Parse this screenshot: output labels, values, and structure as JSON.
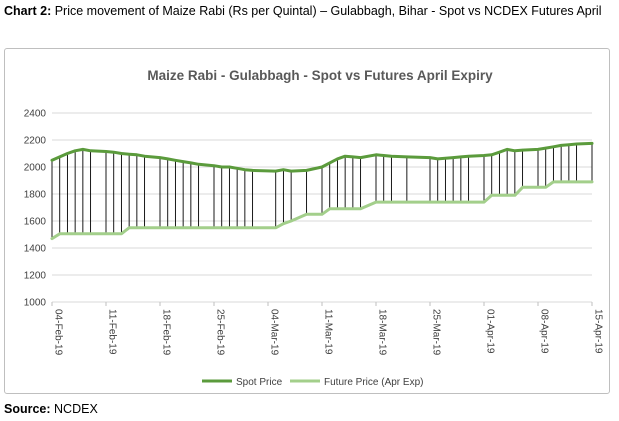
{
  "caption": {
    "label": "Chart 2:",
    "text": "Price movement of Maize Rabi (Rs per Quintal) – Gulabbagh, Bihar - Spot vs NCDEX Futures April"
  },
  "source": {
    "label": "Source:",
    "text": "NCDEX"
  },
  "colors": {
    "spot": "#5b9b3c",
    "future": "#a3cf8b",
    "connector": "#000000",
    "grid": "#d9d9d9"
  },
  "chart_data": {
    "type": "line",
    "title": "Maize Rabi - Gulabbagh - Spot vs Futures April Expiry",
    "xlabel": "",
    "ylabel": "",
    "ylim": [
      1000,
      2400
    ],
    "yticks": [
      1000,
      1200,
      1400,
      1600,
      1800,
      2000,
      2200,
      2400
    ],
    "xticks": [
      "04-Feb-19",
      "11-Feb-19",
      "18-Feb-19",
      "25-Feb-19",
      "04-Mar-19",
      "11-Mar-19",
      "18-Mar-19",
      "25-Mar-19",
      "01-Apr-19",
      "08-Apr-19",
      "15-Apr-19"
    ],
    "grid": "horizontal",
    "legend": "bottom",
    "x": [
      "04-Feb-19",
      "05-Feb-19",
      "06-Feb-19",
      "07-Feb-19",
      "08-Feb-19",
      "09-Feb-19",
      "11-Feb-19",
      "12-Feb-19",
      "13-Feb-19",
      "14-Feb-19",
      "15-Feb-19",
      "16-Feb-19",
      "18-Feb-19",
      "19-Feb-19",
      "20-Feb-19",
      "21-Feb-19",
      "22-Feb-19",
      "23-Feb-19",
      "25-Feb-19",
      "26-Feb-19",
      "27-Feb-19",
      "28-Feb-19",
      "01-Mar-19",
      "02-Mar-19",
      "05-Mar-19",
      "06-Mar-19",
      "07-Mar-19",
      "09-Mar-19",
      "11-Mar-19",
      "12-Mar-19",
      "13-Mar-19",
      "14-Mar-19",
      "15-Mar-19",
      "16-Mar-19",
      "18-Mar-19",
      "19-Mar-19",
      "20-Mar-19",
      "22-Mar-19",
      "25-Mar-19",
      "26-Mar-19",
      "27-Mar-19",
      "28-Mar-19",
      "29-Mar-19",
      "30-Mar-19",
      "01-Apr-19",
      "02-Apr-19",
      "03-Apr-19",
      "04-Apr-19",
      "05-Apr-19",
      "06-Apr-19",
      "08-Apr-19",
      "09-Apr-19",
      "10-Apr-19",
      "11-Apr-19",
      "12-Apr-19",
      "13-Apr-19",
      "15-Apr-19"
    ],
    "series": [
      {
        "name": "Spot Price",
        "values": [
          2050,
          2075,
          2100,
          2120,
          2130,
          2120,
          2115,
          2110,
          2100,
          2095,
          2090,
          2080,
          2070,
          2060,
          2050,
          2040,
          2030,
          2020,
          2010,
          2000,
          2000,
          1990,
          1980,
          1975,
          1970,
          1980,
          1970,
          1975,
          2000,
          2030,
          2060,
          2080,
          2075,
          2070,
          2090,
          2085,
          2080,
          2075,
          2070,
          2060,
          2065,
          2070,
          2075,
          2080,
          2085,
          2090,
          2110,
          2130,
          2120,
          2125,
          2130,
          2140,
          2150,
          2160,
          2165,
          2170,
          2175
        ]
      },
      {
        "name": "Future Price (Apr Exp)",
        "values": [
          1470,
          1505,
          1505,
          1505,
          1505,
          1505,
          1505,
          1505,
          1505,
          1550,
          1550,
          1550,
          1550,
          1550,
          1550,
          1550,
          1550,
          1550,
          1550,
          1550,
          1550,
          1550,
          1550,
          1550,
          1550,
          1580,
          1600,
          1650,
          1650,
          1690,
          1690,
          1690,
          1690,
          1690,
          1740,
          1740,
          1740,
          1740,
          1740,
          1740,
          1740,
          1740,
          1740,
          1740,
          1740,
          1790,
          1790,
          1790,
          1790,
          1850,
          1850,
          1850,
          1890,
          1890,
          1890,
          1890,
          1890
        ]
      }
    ]
  }
}
